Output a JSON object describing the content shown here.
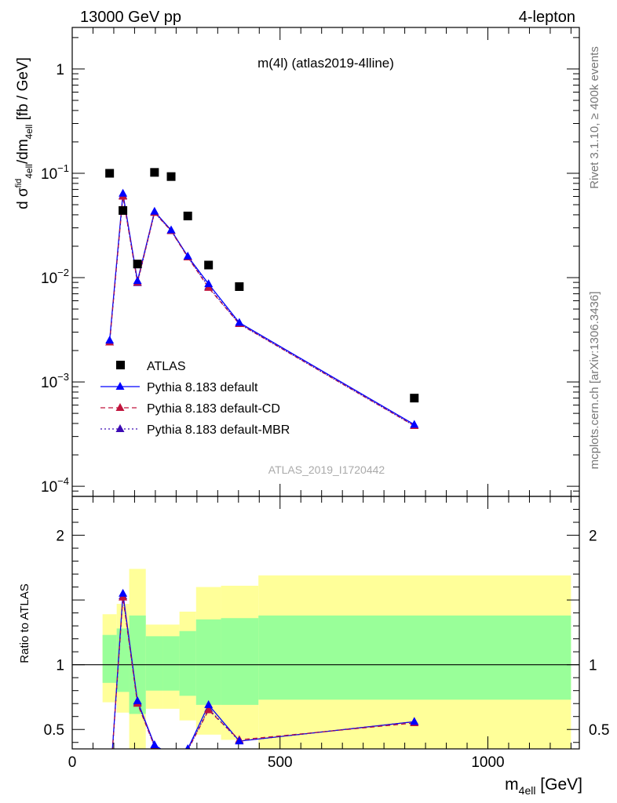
{
  "header": {
    "left": "13000 GeV pp",
    "right": "4-lepton"
  },
  "plot_title": "m(4l) (atlas2019-4lline)",
  "analysis_id": "ATLAS_2019_I1720442",
  "side_labels": {
    "rivet": "Rivet 3.1.10, ≥ 400k events",
    "mcplots": "mcplots.cern.ch [arXiv:1306.3436]"
  },
  "axis_labels": {
    "y_main": "d σᶠid₄ₑₗₗ/dm₄ₑₗₗ [fb / GeV]",
    "y_main_parts": {
      "a": "d σ",
      "b": "fid",
      "c": "4ell",
      "d": "/dm",
      "e": "4ell",
      "f": " [fb / GeV]"
    },
    "y_ratio": "Ratio to ATLAS",
    "x_main": "m",
    "x_sub": "4ell",
    "x_unit": " [GeV]"
  },
  "legend": [
    {
      "label": "ATLAS",
      "marker": "square",
      "color": "#000000"
    },
    {
      "label": "Pythia 8.183 default",
      "marker": "triangle",
      "color": "#0000ff",
      "dash": "solid"
    },
    {
      "label": "Pythia 8.183 default-CD",
      "marker": "triangle",
      "color": "#c0143c",
      "dash": "dashed"
    },
    {
      "label": "Pythia 8.183 default-MBR",
      "marker": "triangle",
      "color": "#3c0ab4",
      "dash": "dotted"
    }
  ],
  "chart_data": {
    "type": "scatter",
    "x_axis": {
      "range": [
        0,
        1220
      ],
      "ticks": [
        0,
        500,
        1000
      ],
      "tick_labels": [
        "0",
        "500",
        "1000"
      ]
    },
    "y_axis_main": {
      "scale": "log",
      "range": [
        8e-05,
        2.5
      ],
      "ticks": [
        0.0001,
        0.001,
        0.01,
        0.1,
        1
      ]
    },
    "y_axis_ratio": {
      "range": [
        0.35,
        2.3
      ],
      "ticks": [
        0.5,
        1,
        2
      ],
      "tick_labels": [
        "0.5",
        "1",
        "2"
      ]
    },
    "atlas": {
      "x": [
        90,
        122,
        157,
        198,
        238,
        278,
        328,
        402,
        823
      ],
      "y": [
        0.1,
        0.044,
        0.0135,
        0.102,
        0.093,
        0.039,
        0.0132,
        0.0082,
        0.0007
      ]
    },
    "series": [
      {
        "name": "Pythia 8.183 default",
        "color": "#0000ff",
        "x": [
          90,
          122,
          157,
          198,
          238,
          278,
          328,
          402,
          823
        ],
        "y": [
          0.0025,
          0.064,
          0.0093,
          0.043,
          0.0285,
          0.016,
          0.0087,
          0.0037,
          0.00039
        ],
        "ratio": [
          0.025,
          1.55,
          0.72,
          0.38,
          0.3,
          0.35,
          0.69,
          0.41,
          0.56
        ]
      },
      {
        "name": "Pythia 8.183 default-CD",
        "color": "#c0143c",
        "x": [
          90,
          122,
          157,
          198,
          238,
          278,
          328,
          402,
          823
        ],
        "y": [
          0.0024,
          0.06,
          0.009,
          0.042,
          0.028,
          0.0157,
          0.008,
          0.0036,
          0.00038
        ],
        "ratio": [
          0.024,
          1.52,
          0.7,
          0.37,
          0.29,
          0.34,
          0.65,
          0.42,
          0.55
        ]
      },
      {
        "name": "Pythia 8.183 default-MBR",
        "color": "#3c0ab4",
        "x": [
          90,
          122,
          157,
          198,
          238,
          278,
          328,
          402,
          823
        ],
        "y": [
          0.0024,
          0.061,
          0.0089,
          0.042,
          0.0282,
          0.0158,
          0.0082,
          0.0036,
          0.00038
        ],
        "ratio": [
          0.024,
          1.53,
          0.71,
          0.37,
          0.29,
          0.34,
          0.66,
          0.41,
          0.56
        ]
      }
    ],
    "uncertainty_bands": {
      "bins": [
        [
          73,
          107
        ],
        [
          107,
          137
        ],
        [
          137,
          177
        ],
        [
          177,
          219
        ],
        [
          219,
          258
        ],
        [
          258,
          298
        ],
        [
          298,
          358
        ],
        [
          358,
          448
        ],
        [
          448,
          1200
        ]
      ],
      "stat_low": [
        0.86,
        0.79,
        0.62,
        0.8,
        0.8,
        0.76,
        0.69,
        0.69,
        0.73
      ],
      "stat_high": [
        1.23,
        1.28,
        1.38,
        1.22,
        1.22,
        1.26,
        1.35,
        1.36,
        1.38
      ],
      "total_low": [
        0.71,
        0.63,
        0.31,
        0.66,
        0.66,
        0.57,
        0.46,
        0.42,
        0.3
      ],
      "total_high": [
        1.39,
        1.47,
        1.74,
        1.31,
        1.31,
        1.41,
        1.6,
        1.61,
        1.69
      ],
      "stat_color": "#99ff99",
      "total_color": "#ffff99"
    }
  }
}
